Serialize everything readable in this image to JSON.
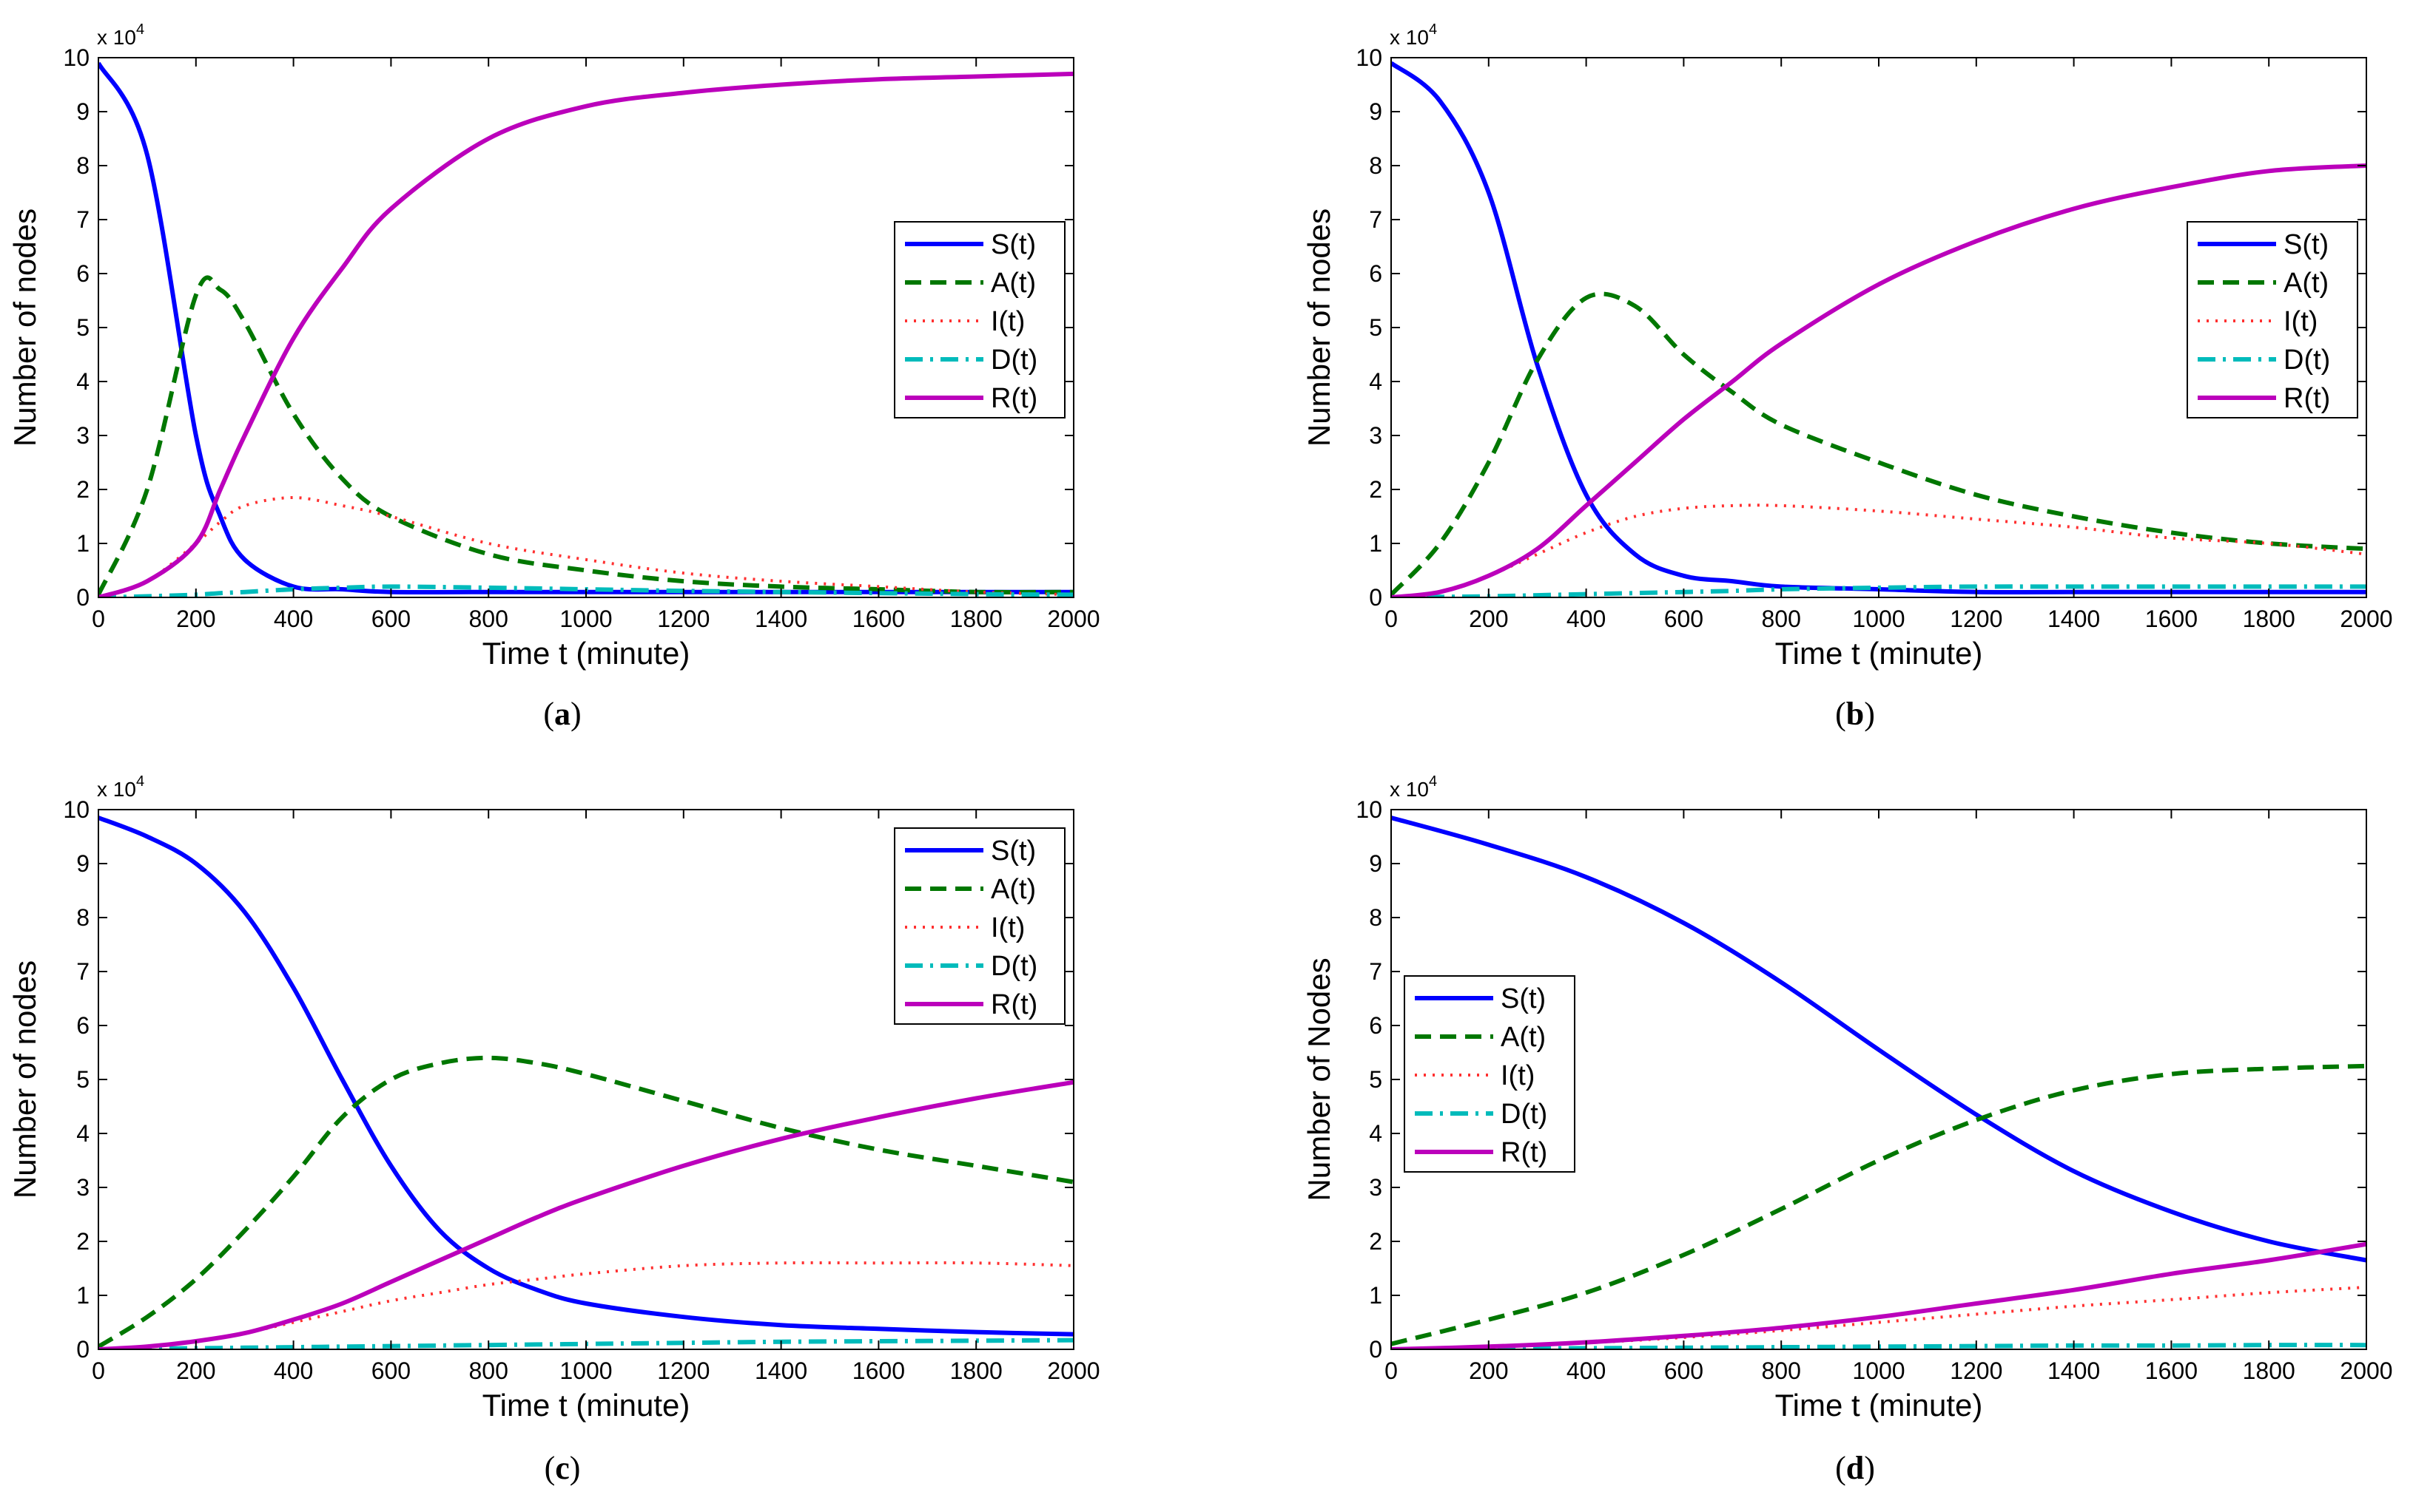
{
  "chart_data": [
    {
      "type": "line",
      "panel": "a",
      "caption_letter": "a",
      "xlabel": "Time t (minute)",
      "ylabel": "Number of nodes",
      "xlim": [
        0,
        2000
      ],
      "ylim": [
        0,
        10
      ],
      "y_multiplier": "x 10",
      "y_exponent": "4",
      "xticks": [
        0,
        200,
        400,
        600,
        800,
        1000,
        1200,
        1400,
        1600,
        1800,
        2000
      ],
      "yticks": [
        0,
        1,
        2,
        3,
        4,
        5,
        6,
        7,
        8,
        9,
        10
      ],
      "legend_position": "right-middle",
      "x": [
        0,
        100,
        200,
        250,
        300,
        400,
        500,
        600,
        800,
        1000,
        1200,
        1400,
        1600,
        1800,
        2000
      ],
      "series": [
        {
          "name": "S(t)",
          "color": "#0000ff",
          "style": "solid",
          "values": [
            9.9,
            8.2,
            3.0,
            1.5,
            0.7,
            0.2,
            0.15,
            0.1,
            0.1,
            0.1,
            0.1,
            0.1,
            0.1,
            0.1,
            0.1
          ]
        },
        {
          "name": "A(t)",
          "color": "#007700",
          "style": "dashed",
          "values": [
            0.05,
            2.0,
            5.6,
            5.7,
            5.1,
            3.4,
            2.2,
            1.5,
            0.8,
            0.5,
            0.3,
            0.2,
            0.15,
            0.1,
            0.1
          ]
        },
        {
          "name": "I(t)",
          "color": "#ff3030",
          "style": "dotted",
          "values": [
            0,
            0.3,
            1.0,
            1.4,
            1.7,
            1.85,
            1.7,
            1.5,
            1.0,
            0.7,
            0.45,
            0.3,
            0.2,
            0.1,
            0.05
          ]
        },
        {
          "name": "D(t)",
          "color": "#00bbbb",
          "style": "dashdot",
          "values": [
            0,
            0.02,
            0.05,
            0.08,
            0.1,
            0.15,
            0.18,
            0.2,
            0.18,
            0.15,
            0.12,
            0.1,
            0.08,
            0.06,
            0.05
          ]
        },
        {
          "name": "R(t)",
          "color": "#bb00bb",
          "style": "solid",
          "values": [
            0,
            0.3,
            1.0,
            2.0,
            3.0,
            4.8,
            6.1,
            7.2,
            8.5,
            9.1,
            9.35,
            9.5,
            9.6,
            9.65,
            9.7
          ]
        }
      ]
    },
    {
      "type": "line",
      "panel": "b",
      "caption_letter": "b",
      "xlabel": "Time t (minute)",
      "ylabel": "Number of nodes",
      "xlim": [
        0,
        2000
      ],
      "ylim": [
        0,
        10
      ],
      "y_multiplier": "x 10",
      "y_exponent": "4",
      "xticks": [
        0,
        200,
        400,
        600,
        800,
        1000,
        1200,
        1400,
        1600,
        1800,
        2000
      ],
      "yticks": [
        0,
        1,
        2,
        3,
        4,
        5,
        6,
        7,
        8,
        9,
        10
      ],
      "legend_position": "right-middle",
      "x": [
        0,
        100,
        200,
        300,
        400,
        500,
        600,
        700,
        800,
        1000,
        1200,
        1400,
        1600,
        1800,
        2000
      ],
      "series": [
        {
          "name": "S(t)",
          "color": "#0000ff",
          "style": "solid",
          "values": [
            9.9,
            9.2,
            7.5,
            4.3,
            1.9,
            0.8,
            0.4,
            0.3,
            0.2,
            0.15,
            0.1,
            0.1,
            0.1,
            0.1,
            0.1
          ]
        },
        {
          "name": "A(t)",
          "color": "#007700",
          "style": "dashed",
          "values": [
            0.05,
            1.0,
            2.5,
            4.4,
            5.55,
            5.4,
            4.5,
            3.8,
            3.2,
            2.5,
            1.9,
            1.5,
            1.2,
            1.0,
            0.9
          ]
        },
        {
          "name": "I(t)",
          "color": "#ff3030",
          "style": "dotted",
          "values": [
            0,
            0.1,
            0.4,
            0.8,
            1.2,
            1.5,
            1.65,
            1.7,
            1.7,
            1.6,
            1.45,
            1.3,
            1.1,
            1.0,
            0.8
          ]
        },
        {
          "name": "D(t)",
          "color": "#00bbbb",
          "style": "dashdot",
          "values": [
            0,
            0.01,
            0.02,
            0.04,
            0.06,
            0.08,
            0.1,
            0.12,
            0.15,
            0.18,
            0.2,
            0.2,
            0.2,
            0.2,
            0.2
          ]
        },
        {
          "name": "R(t)",
          "color": "#bb00bb",
          "style": "solid",
          "values": [
            0,
            0.1,
            0.4,
            0.9,
            1.7,
            2.5,
            3.3,
            4.0,
            4.7,
            5.8,
            6.6,
            7.2,
            7.6,
            7.9,
            8.0
          ]
        }
      ]
    },
    {
      "type": "line",
      "panel": "c",
      "caption_letter": "c",
      "xlabel": "Time t (minute)",
      "ylabel": "Number of nodes",
      "xlim": [
        0,
        2000
      ],
      "ylim": [
        0,
        10
      ],
      "y_multiplier": "x 10",
      "y_exponent": "4",
      "xticks": [
        0,
        200,
        400,
        600,
        800,
        1000,
        1200,
        1400,
        1600,
        1800,
        2000
      ],
      "yticks": [
        0,
        1,
        2,
        3,
        4,
        5,
        6,
        7,
        8,
        9,
        10
      ],
      "legend_position": "top-right",
      "x": [
        0,
        100,
        200,
        300,
        400,
        500,
        600,
        700,
        800,
        900,
        1000,
        1200,
        1400,
        1600,
        1800,
        2000
      ],
      "series": [
        {
          "name": "S(t)",
          "color": "#0000ff",
          "style": "solid",
          "values": [
            9.85,
            9.5,
            9.0,
            8.1,
            6.7,
            5.0,
            3.4,
            2.2,
            1.5,
            1.1,
            0.85,
            0.6,
            0.45,
            0.38,
            0.32,
            0.28
          ]
        },
        {
          "name": "A(t)",
          "color": "#007700",
          "style": "dashed",
          "values": [
            0.05,
            0.6,
            1.3,
            2.2,
            3.2,
            4.3,
            5.0,
            5.3,
            5.4,
            5.3,
            5.1,
            4.6,
            4.1,
            3.7,
            3.4,
            3.1
          ]
        },
        {
          "name": "I(t)",
          "color": "#ff3030",
          "style": "dotted",
          "values": [
            0,
            0.05,
            0.15,
            0.3,
            0.5,
            0.7,
            0.9,
            1.05,
            1.2,
            1.3,
            1.4,
            1.55,
            1.6,
            1.6,
            1.6,
            1.55
          ]
        },
        {
          "name": "D(t)",
          "color": "#00bbbb",
          "style": "dashdot",
          "values": [
            0,
            0.01,
            0.02,
            0.03,
            0.04,
            0.05,
            0.06,
            0.07,
            0.08,
            0.09,
            0.1,
            0.12,
            0.14,
            0.15,
            0.16,
            0.17
          ]
        },
        {
          "name": "R(t)",
          "color": "#bb00bb",
          "style": "solid",
          "values": [
            0,
            0.05,
            0.15,
            0.3,
            0.55,
            0.85,
            1.25,
            1.65,
            2.05,
            2.45,
            2.8,
            3.4,
            3.9,
            4.3,
            4.65,
            4.95
          ]
        }
      ]
    },
    {
      "type": "line",
      "panel": "d",
      "caption_letter": "d",
      "xlabel": "Time t (minute)",
      "ylabel": "Number of Nodes",
      "xlim": [
        0,
        2000
      ],
      "ylim": [
        0,
        10
      ],
      "y_multiplier": "x 10",
      "y_exponent": "4",
      "xticks": [
        0,
        200,
        400,
        600,
        800,
        1000,
        1200,
        1400,
        1600,
        1800,
        2000
      ],
      "yticks": [
        0,
        1,
        2,
        3,
        4,
        5,
        6,
        7,
        8,
        9,
        10
      ],
      "legend_position": "left-middle",
      "x": [
        0,
        200,
        400,
        600,
        800,
        1000,
        1200,
        1400,
        1600,
        1800,
        2000
      ],
      "series": [
        {
          "name": "S(t)",
          "color": "#0000ff",
          "style": "solid",
          "values": [
            9.85,
            9.35,
            8.75,
            7.9,
            6.8,
            5.55,
            4.35,
            3.3,
            2.55,
            2.0,
            1.65
          ]
        },
        {
          "name": "A(t)",
          "color": "#007700",
          "style": "dashed",
          "values": [
            0.1,
            0.55,
            1.05,
            1.75,
            2.6,
            3.5,
            4.25,
            4.8,
            5.1,
            5.2,
            5.25
          ]
        },
        {
          "name": "I(t)",
          "color": "#ff3030",
          "style": "dotted",
          "values": [
            0,
            0.05,
            0.12,
            0.22,
            0.35,
            0.5,
            0.65,
            0.8,
            0.92,
            1.05,
            1.15
          ]
        },
        {
          "name": "D(t)",
          "color": "#00bbbb",
          "style": "dashdot",
          "values": [
            0,
            0.01,
            0.02,
            0.03,
            0.04,
            0.05,
            0.06,
            0.07,
            0.07,
            0.08,
            0.08
          ]
        },
        {
          "name": "R(t)",
          "color": "#bb00bb",
          "style": "solid",
          "values": [
            0,
            0.05,
            0.13,
            0.25,
            0.4,
            0.6,
            0.85,
            1.1,
            1.4,
            1.65,
            1.95
          ]
        }
      ]
    }
  ]
}
